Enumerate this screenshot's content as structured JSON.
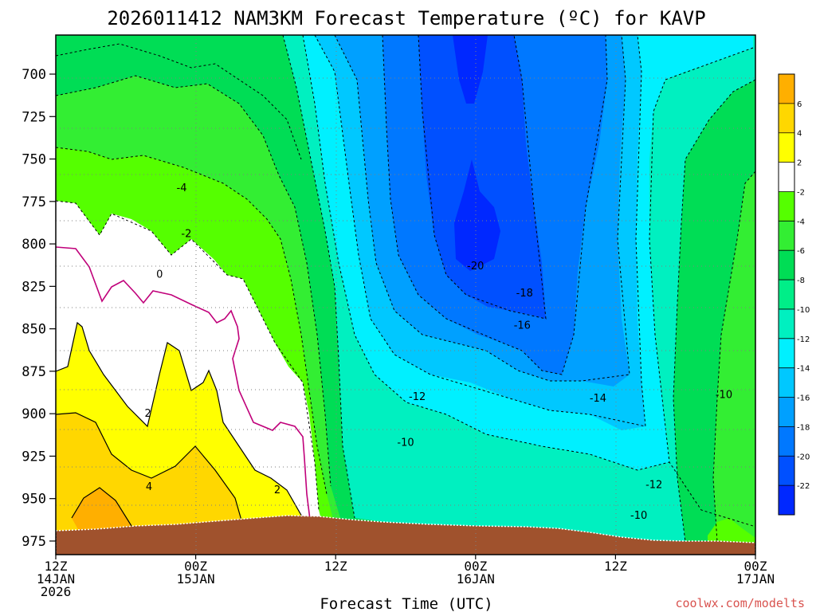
{
  "chart_data": {
    "type": "heatmap",
    "title": "2026011412 NAM3KM Forecast Temperature (ºC) for KAVP",
    "xlabel": "Forecast Time (UTC)",
    "ylabel": "",
    "credit": "coolwx.com/modelts",
    "x_ticks": [
      {
        "hours": 0,
        "l1": "12Z",
        "l2": "14JAN",
        "l3": "2026"
      },
      {
        "hours": 12,
        "l1": "00Z",
        "l2": "15JAN",
        "l3": ""
      },
      {
        "hours": 24,
        "l1": "12Z",
        "l2": "",
        "l3": ""
      },
      {
        "hours": 36,
        "l1": "00Z",
        "l2": "16JAN",
        "l3": ""
      },
      {
        "hours": 48,
        "l1": "12Z",
        "l2": "",
        "l3": ""
      },
      {
        "hours": 60,
        "l1": "00Z",
        "l2": "17JAN",
        "l3": ""
      }
    ],
    "y_ticks": [
      "700",
      "725",
      "750",
      "775",
      "800",
      "825",
      "850",
      "875",
      "900",
      "925",
      "950",
      "975"
    ],
    "y_range_hpa": [
      677,
      983
    ],
    "x_range_hours": [
      0,
      60
    ],
    "colorbar_ticks": [
      "6",
      "4",
      "2",
      "-2",
      "-4",
      "-6",
      "-8",
      "-10",
      "-12",
      "-14",
      "-16",
      "-18",
      "-20",
      "-22"
    ],
    "colorbar_colors": [
      "#ffaf00",
      "#ffd700",
      "#ffff00",
      "#ffffff",
      "#55ff00",
      "#33ee33",
      "#00dd55",
      "#00ee88",
      "#00f0c0",
      "#00f0ff",
      "#00c8ff",
      "#00a0ff",
      "#0078ff",
      "#0050ff",
      "#0028ff"
    ],
    "contour_labels": [
      {
        "text": "-4",
        "t": 10.8,
        "p": 767
      },
      {
        "text": "-2",
        "t": 11.2,
        "p": 794
      },
      {
        "text": "0",
        "t": 8.9,
        "p": 818
      },
      {
        "text": "2",
        "t": 7.9,
        "p": 900
      },
      {
        "text": "4",
        "t": 8.0,
        "p": 943
      },
      {
        "text": "2",
        "t": 19.0,
        "p": 945
      },
      {
        "text": "-12",
        "t": 31.0,
        "p": 890
      },
      {
        "text": "-10",
        "t": 30.0,
        "p": 917
      },
      {
        "text": "-20",
        "t": 36.0,
        "p": 813
      },
      {
        "text": "-18",
        "t": 40.2,
        "p": 829
      },
      {
        "text": "-16",
        "t": 40.0,
        "p": 848
      },
      {
        "text": "-14",
        "t": 46.5,
        "p": 891
      },
      {
        "text": "-12",
        "t": 51.3,
        "p": 942
      },
      {
        "text": "-10",
        "t": 50.0,
        "p": 960
      },
      {
        "text": "-10",
        "t": 57.3,
        "p": 889
      }
    ]
  }
}
